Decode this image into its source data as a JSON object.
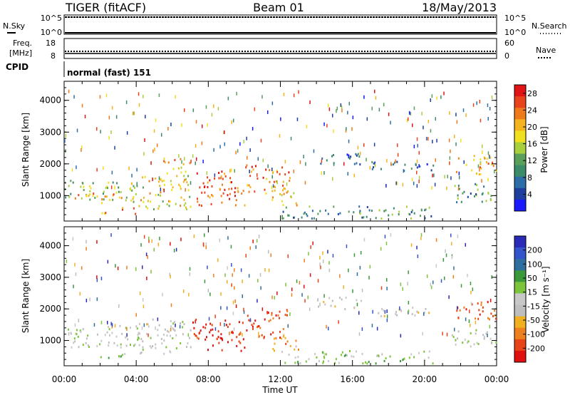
{
  "header": {
    "radar": "TIGER (fitACF)",
    "beam": "Beam 01",
    "date": "18/May/2013"
  },
  "strip_labels": {
    "nsky": "N.Sky",
    "nsearch": "N.Search",
    "freq_line1": "Freq.",
    "freq_line2": "[MHz]",
    "nave": "Nave",
    "cpid": "CPID",
    "cpid_value": "normal (fast) 151"
  },
  "strip_ticks": {
    "noise_left": [
      "10^5",
      "10^0"
    ],
    "noise_right": [
      "10^5",
      "10^0"
    ],
    "freq_left": [
      "18",
      "8"
    ],
    "nave_right": [
      "60",
      "0"
    ]
  },
  "colors": {
    "power_scale": [
      "#1a1aff",
      "#1e3f9e",
      "#2d6ea8",
      "#3c8c6a",
      "#5aa05a",
      "#a8cf3c",
      "#f0e020",
      "#f4b41e",
      "#ef7a1c",
      "#e8431c",
      "#e01414"
    ],
    "velocity_scale": [
      "#2a2ab8",
      "#3355cc",
      "#2f6fa0",
      "#3a9a3a",
      "#7cc43c",
      "#c8c8c8",
      "#bebebe",
      "#f0b020",
      "#ef8020",
      "#e84418",
      "#e01010"
    ]
  },
  "chart_data": [
    {
      "type": "heatmap",
      "panel": "power",
      "title": "",
      "ylabel": "Slant Range [km]",
      "xlabel": "",
      "ylim": [
        200,
        4600
      ],
      "xlim": [
        0,
        24
      ],
      "yticks": [
        "1000",
        "2000",
        "3000",
        "4000"
      ],
      "xticks": [
        "00:00",
        "04:00",
        "08:00",
        "12:00",
        "16:00",
        "20:00",
        "00:00"
      ],
      "colorbar": {
        "label": "Power [dB]",
        "ticks": [
          "4",
          "8",
          "12",
          "16",
          "20",
          "24",
          "28"
        ],
        "range": [
          0,
          30
        ]
      },
      "echo_regions": [
        {
          "t0": 0.0,
          "t1": 4.2,
          "r0": 800,
          "r1": 1500,
          "value": 14
        },
        {
          "t0": 0.5,
          "t1": 4.0,
          "r0": 880,
          "r1": 1100,
          "value": 22
        },
        {
          "t0": 2.0,
          "t1": 4.0,
          "r0": 450,
          "r1": 650,
          "value": 24
        },
        {
          "t0": 4.0,
          "t1": 7.0,
          "r0": 600,
          "r1": 1700,
          "value": 18
        },
        {
          "t0": 5.5,
          "t1": 7.0,
          "r0": 1700,
          "r1": 2200,
          "value": 22
        },
        {
          "t0": 7.0,
          "t1": 10.0,
          "r0": 700,
          "r1": 1400,
          "value": 26
        },
        {
          "t0": 7.3,
          "t1": 9.3,
          "r0": 1300,
          "r1": 1800,
          "value": 27
        },
        {
          "t0": 10.0,
          "t1": 12.5,
          "r0": 1100,
          "r1": 2000,
          "value": 24
        },
        {
          "t0": 11.5,
          "t1": 13.0,
          "r0": 700,
          "r1": 1200,
          "value": 20
        },
        {
          "t0": 12.0,
          "t1": 20.5,
          "r0": 300,
          "r1": 700,
          "value": 10
        },
        {
          "t0": 14.0,
          "t1": 16.5,
          "r0": 2000,
          "r1": 2400,
          "value": 6
        },
        {
          "t0": 17.0,
          "t1": 20.5,
          "r0": 1800,
          "r1": 2100,
          "value": 6
        },
        {
          "t0": 21.5,
          "t1": 24.0,
          "r0": 800,
          "r1": 1400,
          "value": 10
        },
        {
          "t0": 21.7,
          "t1": 24.0,
          "r0": 1700,
          "r1": 2300,
          "value": 22
        }
      ]
    },
    {
      "type": "heatmap",
      "panel": "velocity",
      "title": "",
      "ylabel": "Slant Range [km]",
      "xlabel": "Time UT",
      "ylim": [
        200,
        4600
      ],
      "xlim": [
        0,
        24
      ],
      "yticks": [
        "1000",
        "2000",
        "3000",
        "4000"
      ],
      "xticks": [
        "00:00",
        "04:00",
        "08:00",
        "12:00",
        "16:00",
        "20:00",
        "00:00"
      ],
      "colorbar": {
        "label": "Velocity [m s⁻¹]",
        "ticks": [
          "200",
          "100",
          "50",
          "15",
          "-15",
          "-50",
          "-100",
          "-200"
        ],
        "range": [
          -250,
          250
        ]
      },
      "echo_regions": [
        {
          "t0": 0.0,
          "t1": 4.2,
          "r0": 800,
          "r1": 1500,
          "value": 0
        },
        {
          "t0": 2.0,
          "t1": 4.0,
          "r0": 450,
          "r1": 650,
          "value": 40
        },
        {
          "t0": 4.0,
          "t1": 7.0,
          "r0": 600,
          "r1": 1700,
          "value": -20
        },
        {
          "t0": 7.0,
          "t1": 10.0,
          "r0": 700,
          "r1": 1700,
          "value": -230
        },
        {
          "t0": 10.0,
          "t1": 12.5,
          "r0": 1100,
          "r1": 2000,
          "value": -200
        },
        {
          "t0": 11.5,
          "t1": 13.0,
          "r0": 700,
          "r1": 1200,
          "value": -120
        },
        {
          "t0": 12.0,
          "t1": 20.5,
          "r0": 300,
          "r1": 700,
          "value": 30
        },
        {
          "t0": 14.0,
          "t1": 16.5,
          "r0": 2000,
          "r1": 2400,
          "value": -40
        },
        {
          "t0": 17.0,
          "t1": 20.5,
          "r0": 1800,
          "r1": 2100,
          "value": -30
        },
        {
          "t0": 21.5,
          "t1": 24.0,
          "r0": 800,
          "r1": 1400,
          "value": 0
        },
        {
          "t0": 21.7,
          "t1": 24.0,
          "r0": 1700,
          "r1": 2300,
          "value": -180
        }
      ]
    }
  ]
}
